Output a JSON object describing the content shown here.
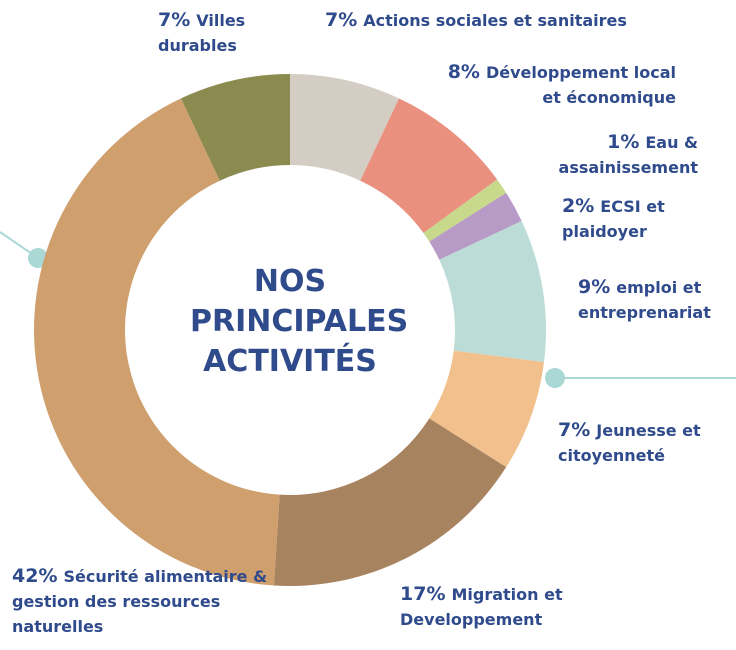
{
  "chart_data": {
    "type": "donut",
    "title": "NOS PRINCIPALES ACTIVITÉS",
    "categories": [
      "Actions sociales et sanitaires",
      "Développement local et économique",
      "Eau & assainissement",
      "ECSI et plaidoyer",
      "emploi et entreprenariat",
      "Jeunesse et citoyenneté",
      "Migration et Developpement",
      "Sécurité alimentaire & gestion des ressources naturelles",
      "Villes durables"
    ],
    "values": [
      7,
      8,
      1,
      2,
      9,
      7,
      17,
      42,
      7
    ],
    "value_labels": [
      "7%",
      "8%",
      "1%",
      "2%",
      "9%",
      "7%",
      "17%",
      "42%",
      "7%"
    ],
    "colors": [
      "#d4cdc3",
      "#e9907f",
      "#c9d98c",
      "#b79bc6",
      "#bcdcd8",
      "#f1c08c",
      "#a8835f",
      "#cf9f6e",
      "#8b8b4f"
    ]
  }
}
